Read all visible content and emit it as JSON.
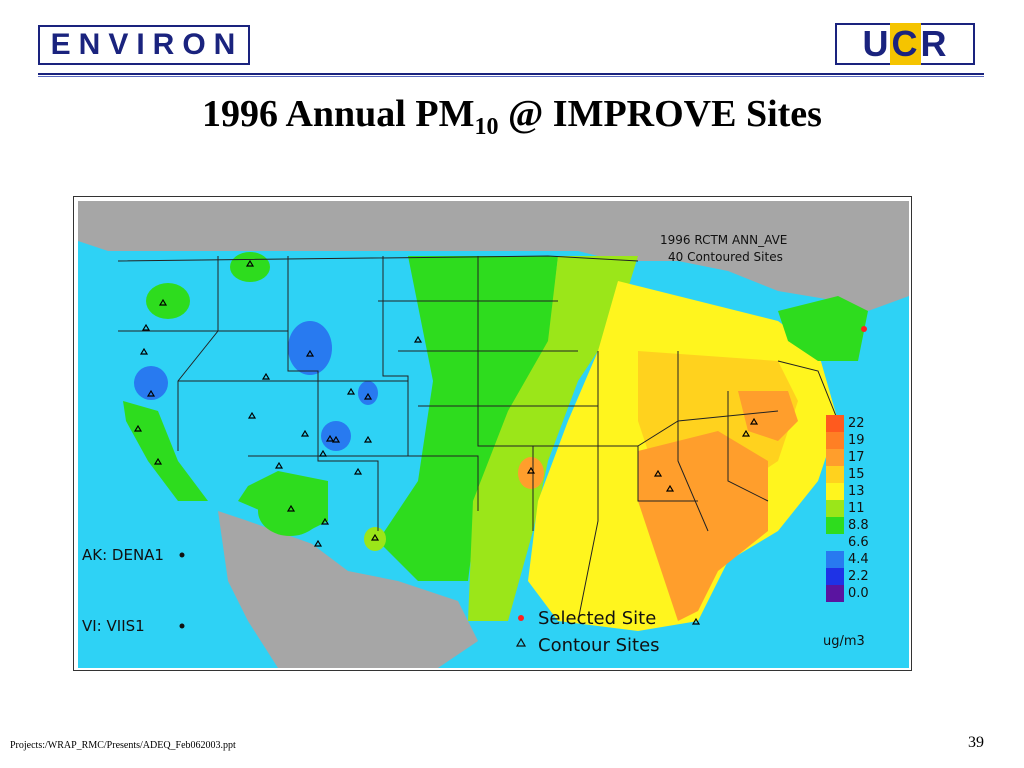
{
  "header": {
    "left_logo_text": "ENVIRON",
    "right_logo": {
      "u": "U",
      "c": "C",
      "r": "R"
    }
  },
  "title": {
    "main": "1996 Annual PM",
    "subscript": "10",
    "suffix": " @ IMPROVE Sites"
  },
  "map": {
    "label_line1": "1996 RCTM ANN_AVE",
    "label_line2": "40 Contoured Sites",
    "inset_ak": "AK: DENA1",
    "inset_vi": "VI:  VIIS1",
    "legend_selected": "Selected Site",
    "legend_contour": "Contour Sites",
    "colorbar": {
      "unit": "ug/m3",
      "levels": [
        "22",
        "19",
        "17",
        "15",
        "13",
        "11",
        "8.8",
        "6.6",
        "4.4",
        "2.2",
        "0.0"
      ],
      "colors": [
        "#ff5a1e",
        "#ff7f24",
        "#ff9e2c",
        "#ffd21e",
        "#fff51e",
        "#9be619",
        "#2edc1e",
        "#2ed2f5",
        "#287af0",
        "#1e32e6",
        "#5a14a0"
      ]
    },
    "colors": {
      "ocean": "#2ed2f5",
      "land_outside": "#a6a6a6",
      "low": "#2ed2f5",
      "mid": "#2edc1e",
      "mid_high": "#9be619",
      "high": "#fff51e",
      "higher": "#ffd21e",
      "highest": "#ff9e2c"
    }
  },
  "footer": {
    "path": "Projects:/WRAP_RMC/Presents/ADEQ_Feb062003.ppt",
    "page": "39"
  }
}
